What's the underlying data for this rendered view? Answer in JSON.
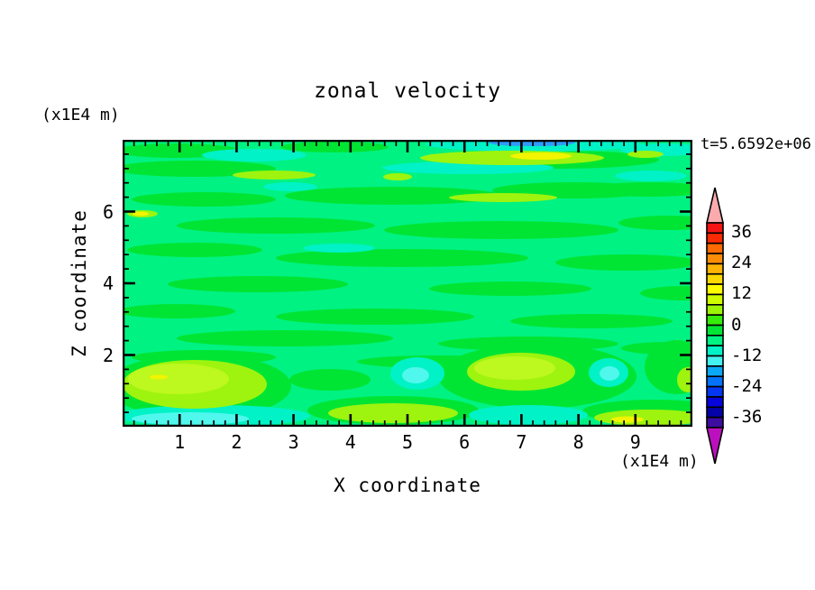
{
  "figure": {
    "title": "zonal velocity",
    "time_annotation": "t=5.6592e+06",
    "background_color": "#FFFFFF",
    "text_color": "#000000"
  },
  "axes": {
    "x": {
      "label": "X coordinate",
      "unit": "(x1E4 m)",
      "min": 0,
      "max": 10,
      "major_tick_labels": [
        "1",
        "2",
        "3",
        "4",
        "5",
        "6",
        "7",
        "8",
        "9"
      ],
      "major_step": 1,
      "minor_step": 0.2
    },
    "z": {
      "label": "Z coordinate",
      "unit": "(x1E4 m)",
      "min": 0,
      "max": 8,
      "major_tick_labels": [
        "2",
        "4",
        "6"
      ],
      "major_ticks": [
        2,
        4,
        6
      ],
      "minor_step": 0.4
    }
  },
  "colorbar": {
    "labels": [
      "36",
      "24",
      "12",
      "0",
      "-12",
      "-24",
      "-36"
    ],
    "label_step": 12,
    "level_step": 4,
    "range_min": -40,
    "range_max": 40,
    "segment_colors_top_to_bottom": [
      "#F51414",
      "#FC2A00",
      "#FD6A00",
      "#FC8D05",
      "#FDB405",
      "#FDD700",
      "#FCFC00",
      "#CEFC00",
      "#9CF406",
      "#35EC0A",
      "#00E534",
      "#00F282",
      "#00F2C6",
      "#43F2EE",
      "#0AA8F5",
      "#0473FA",
      "#0437F2",
      "#0505DC",
      "#0303A8",
      "#3C0D9E"
    ],
    "over_arrow_color": "#FBABAE",
    "under_arrow_color": "#BC10BE",
    "outline_color": "#000000"
  },
  "chart_data": {
    "type": "heatmap",
    "subtype": "filled_contour",
    "title": "zonal velocity",
    "xlabel": "X coordinate",
    "ylabel": "Z coordinate",
    "x_range": [
      0,
      10
    ],
    "z_range": [
      0,
      8
    ],
    "units": "(x1E4 m)",
    "time": "t=5.6592e+06",
    "contour_levels": [
      -40,
      -36,
      -32,
      -28,
      -24,
      -20,
      -16,
      -12,
      -8,
      -4,
      0,
      4,
      8,
      12,
      16,
      20,
      24,
      28,
      32,
      36,
      40
    ],
    "field_summary": "mostly values between -8 and 8; streaky horizontal bands; chartreuse maxima near bottom-left, bottom-center, bottom-right; cyan minima along bottom edge and upper streaks; small blue minimum at top center-right",
    "palette": {
      "bg": "#00F282",
      "g": "#00E534",
      "cy": "#00F2C6",
      "cy2": "#4FF7EC",
      "ch": "#9EF40E",
      "ch2": "#BDF81E",
      "ylw": "#F2F400",
      "blu": "#2F9BFA"
    },
    "features": [
      [
        "g",
        60,
        12,
        70,
        8
      ],
      [
        "g",
        235,
        8,
        60,
        6
      ],
      [
        "g",
        480,
        22,
        115,
        10
      ],
      [
        "g",
        80,
        32,
        90,
        9
      ],
      [
        "g",
        585,
        55,
        70,
        8
      ],
      [
        "g",
        300,
        62,
        120,
        10
      ],
      [
        "g",
        90,
        66,
        80,
        8
      ],
      [
        "g",
        500,
        56,
        90,
        9
      ],
      [
        "g",
        170,
        95,
        110,
        9
      ],
      [
        "g",
        420,
        100,
        130,
        10
      ],
      [
        "g",
        605,
        92,
        55,
        8
      ],
      [
        "g",
        80,
        122,
        75,
        8
      ],
      [
        "g",
        310,
        131,
        140,
        10
      ],
      [
        "g",
        560,
        136,
        80,
        9
      ],
      [
        "g",
        150,
        160,
        100,
        9
      ],
      [
        "g",
        430,
        165,
        90,
        8
      ],
      [
        "g",
        622,
        170,
        48,
        8
      ],
      [
        "g",
        60,
        190,
        65,
        8
      ],
      [
        "g",
        280,
        196,
        110,
        9
      ],
      [
        "g",
        520,
        201,
        90,
        8
      ],
      [
        "g",
        180,
        220,
        120,
        9
      ],
      [
        "g",
        450,
        226,
        100,
        8
      ],
      [
        "g",
        605,
        231,
        52,
        7
      ],
      [
        "g",
        90,
        241,
        80,
        8
      ],
      [
        "g",
        350,
        246,
        90,
        7
      ],
      [
        "g",
        85,
        273,
        102,
        36
      ],
      [
        "g",
        460,
        262,
        110,
        36
      ],
      [
        "g",
        615,
        252,
        36,
        30
      ],
      [
        "g",
        300,
        300,
        95,
        16
      ],
      [
        "g",
        590,
        301,
        80,
        13
      ],
      [
        "g",
        230,
        266,
        45,
        12
      ],
      [
        "cy",
        456,
        5,
        120,
        8
      ],
      [
        "cy",
        146,
        17,
        58,
        7
      ],
      [
        "cy",
        383,
        31,
        95,
        7
      ],
      [
        "cy",
        600,
        11,
        48,
        7
      ],
      [
        "cy",
        586,
        40,
        40,
        6
      ],
      [
        "cy",
        186,
        52,
        30,
        5
      ],
      [
        "cy",
        240,
        120,
        40,
        5
      ],
      [
        "cy",
        327,
        259,
        30,
        18
      ],
      [
        "cy",
        539,
        258,
        22,
        16
      ],
      [
        "cy",
        100,
        306,
        108,
        12
      ],
      [
        "cy",
        450,
        305,
        66,
        11
      ],
      [
        "cy2",
        75,
        309,
        65,
        7
      ],
      [
        "cy2",
        325,
        261,
        15,
        9
      ],
      [
        "cy2",
        540,
        259,
        11,
        8
      ],
      [
        "ch",
        432,
        20,
        102,
        8
      ],
      [
        "ch",
        580,
        16,
        20,
        4
      ],
      [
        "ch",
        168,
        39,
        46,
        5
      ],
      [
        "ch",
        305,
        41,
        16,
        4
      ],
      [
        "ch",
        422,
        64,
        60,
        5
      ],
      [
        "ch",
        22,
        82,
        17,
        4
      ],
      [
        "ch",
        80,
        271,
        80,
        27
      ],
      [
        "ch",
        442,
        257,
        60,
        21
      ],
      [
        "ch",
        300,
        303,
        72,
        11
      ],
      [
        "ch",
        585,
        308,
        62,
        9
      ],
      [
        "ch",
        627,
        266,
        12,
        14
      ],
      [
        "ch2",
        62,
        265,
        56,
        17
      ],
      [
        "ch2",
        435,
        253,
        45,
        13
      ],
      [
        "ylw",
        464,
        18,
        34,
        4
      ],
      [
        "ylw",
        40,
        263,
        10,
        2.5
      ],
      [
        "ylw",
        20,
        82,
        9,
        2.5
      ],
      [
        "ylw",
        560,
        310,
        18,
        3.5
      ],
      [
        "blu",
        454,
        3,
        48,
        4
      ]
    ]
  }
}
